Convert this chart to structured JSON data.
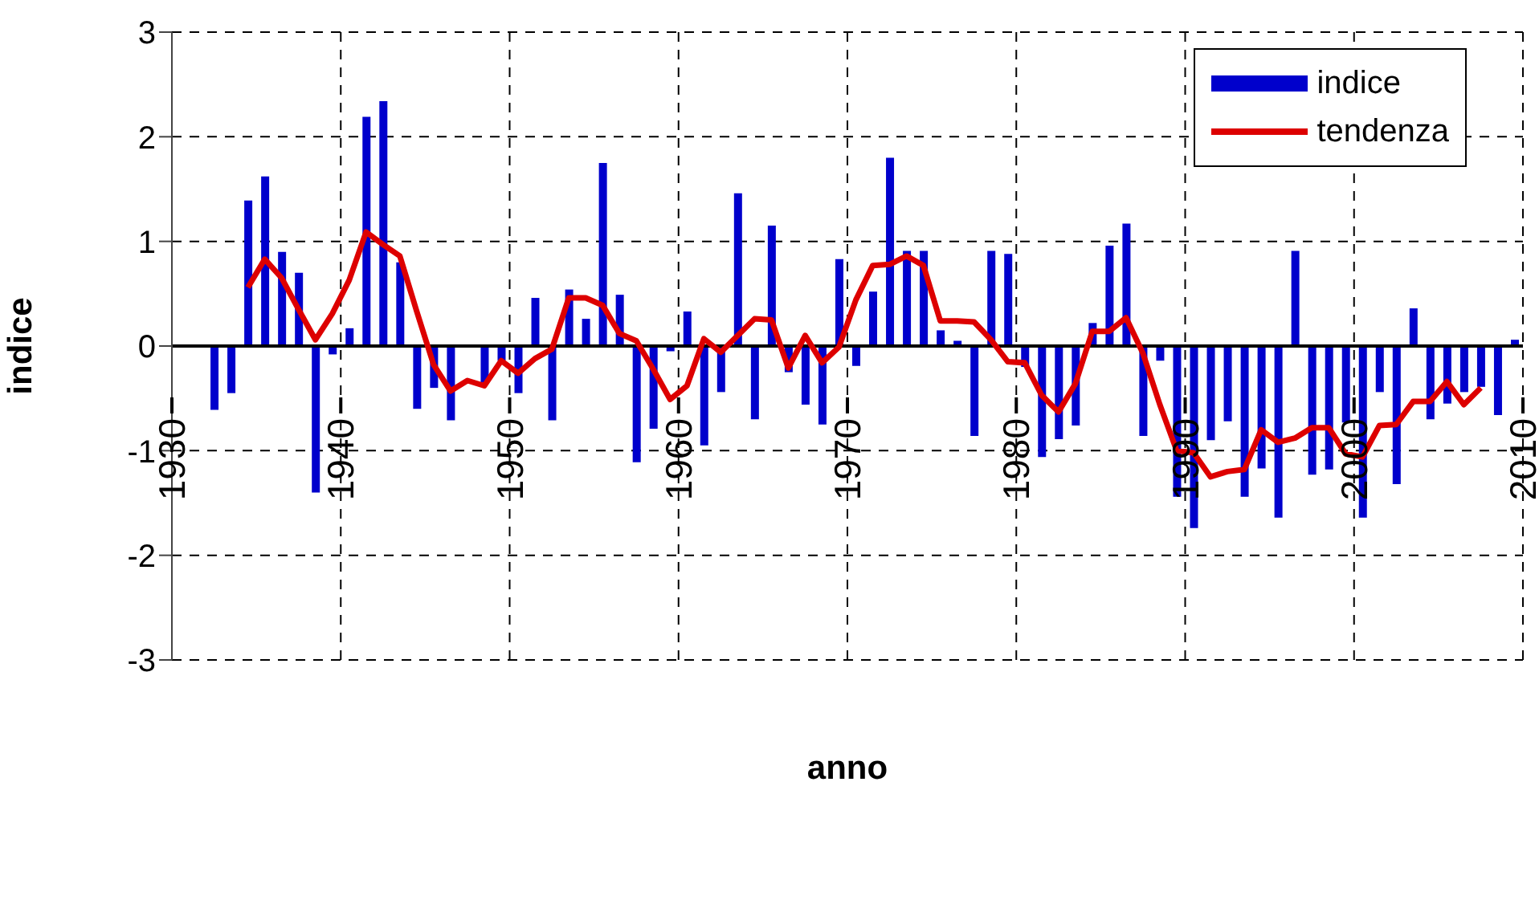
{
  "chart_data": {
    "type": "bar",
    "xlabel": "anno",
    "ylabel": "indice",
    "xlim": [
      1930,
      2010
    ],
    "xticks": [
      1930,
      1940,
      1950,
      1960,
      1970,
      1980,
      1990,
      2000,
      2010
    ],
    "ylim": [
      -3,
      3
    ],
    "yticks": [
      -3,
      -2,
      -1,
      0,
      1,
      2,
      3
    ],
    "grid": true,
    "legend": "top right",
    "series": [
      {
        "name": "indice",
        "color": "#0000cc",
        "x": [
          1932.5,
          1933.5,
          1934.5,
          1935.5,
          1936.5,
          1937.5,
          1938.5,
          1939.5,
          1940.5,
          1941.5,
          1942.5,
          1943.5,
          1944.5,
          1945.5,
          1946.5,
          1947.5,
          1948.5,
          1949.5,
          1950.5,
          1951.5,
          1952.5,
          1953.5,
          1954.5,
          1955.5,
          1956.5,
          1957.5,
          1958.5,
          1959.5,
          1960.5,
          1961.5,
          1962.5,
          1963.5,
          1964.5,
          1965.5,
          1966.5,
          1967.5,
          1968.5,
          1969.5,
          1970.5,
          1971.5,
          1972.5,
          1973.5,
          1974.5,
          1975.5,
          1976.5,
          1977.5,
          1978.5,
          1979.5,
          1980.5,
          1981.5,
          1982.5,
          1983.5,
          1984.5,
          1985.5,
          1986.5,
          1987.5,
          1988.5,
          1989.5,
          1990.5,
          1991.5,
          1992.5,
          1993.5,
          1994.5,
          1995.5,
          1996.5,
          1997.5,
          1998.5,
          1999.5,
          2000.5,
          2001.5,
          2002.5,
          2003.5,
          2004.5,
          2005.5,
          2006.5,
          2007.5,
          2008.5,
          2009.5
        ],
        "values": [
          -0.61,
          -0.45,
          1.39,
          1.62,
          0.9,
          0.7,
          -1.4,
          -0.08,
          0.17,
          2.19,
          2.34,
          0.8,
          -0.6,
          -0.4,
          -0.71,
          0,
          -0.35,
          -0.14,
          -0.45,
          0.46,
          -0.71,
          0.54,
          0.26,
          1.75,
          0.49,
          -1.11,
          -0.79,
          -0.05,
          0.33,
          -0.95,
          -0.44,
          1.46,
          -0.7,
          1.15,
          -0.25,
          -0.56,
          -0.75,
          0.83,
          -0.19,
          0.52,
          1.8,
          0.91,
          0.91,
          0.15,
          0.05,
          -0.86,
          0.91,
          0.88,
          -0.2,
          -1.06,
          -0.89,
          -0.76,
          0.22,
          0.96,
          1.17,
          -0.86,
          -0.14,
          -1.44,
          -1.74,
          -0.9,
          -0.72,
          -1.44,
          -1.17,
          -1.64,
          0.91,
          -1.23,
          -1.18,
          -0.73,
          -1.64,
          -0.44,
          -1.32,
          0.36,
          -0.7,
          -0.55,
          -0.44,
          -0.39,
          -0.66,
          0.06
        ]
      },
      {
        "name": "tendenza",
        "type": "line",
        "color": "#dd0000",
        "marker": "none",
        "line_style": "solid",
        "x": [
          1934.5,
          1935.5,
          1936.5,
          1937.5,
          1938.5,
          1939.5,
          1940.5,
          1941.5,
          1942.5,
          1943.5,
          1944.5,
          1945.5,
          1946.5,
          1947.5,
          1948.5,
          1949.5,
          1950.5,
          1951.5,
          1952.5,
          1953.5,
          1954.5,
          1955.5,
          1956.5,
          1957.5,
          1958.5,
          1959.5,
          1960.5,
          1961.5,
          1962.5,
          1963.5,
          1964.5,
          1965.5,
          1966.5,
          1967.5,
          1968.5,
          1969.5,
          1970.5,
          1971.5,
          1972.5,
          1973.5,
          1974.5,
          1975.5,
          1976.5,
          1977.5,
          1978.5,
          1979.5,
          1980.5,
          1981.5,
          1982.5,
          1983.5,
          1984.5,
          1985.5,
          1986.5,
          1987.5,
          1988.5,
          1989.5,
          1990.5,
          1991.5,
          1992.5,
          1993.5,
          1994.5,
          1995.5,
          1996.5,
          1997.5,
          1998.5,
          1999.5,
          2000.5,
          2001.5,
          2002.5,
          2003.5,
          2004.5,
          2005.5,
          2006.5,
          2007.5
        ],
        "values": [
          0.56,
          0.83,
          0.65,
          0.35,
          0.06,
          0.31,
          0.63,
          1.09,
          0.97,
          0.86,
          0.33,
          -0.18,
          -0.43,
          -0.33,
          -0.38,
          -0.14,
          -0.26,
          -0.12,
          -0.03,
          0.46,
          0.46,
          0.39,
          0.12,
          0.05,
          -0.22,
          -0.51,
          -0.38,
          0.07,
          -0.06,
          0.1,
          0.26,
          0.25,
          -0.21,
          0.1,
          -0.16,
          -0.01,
          0.44,
          0.77,
          0.78,
          0.86,
          0.77,
          0.24,
          0.24,
          0.23,
          0.06,
          -0.15,
          -0.16,
          -0.47,
          -0.63,
          -0.36,
          0.14,
          0.14,
          0.27,
          -0.07,
          -0.56,
          -1.0,
          -1.02,
          -1.25,
          -1.2,
          -1.18,
          -0.8,
          -0.92,
          -0.88,
          -0.78,
          -0.78,
          -1.03,
          -1.06,
          -0.76,
          -0.75,
          -0.53,
          -0.53,
          -0.34,
          -0.56,
          -0.4
        ]
      }
    ]
  }
}
